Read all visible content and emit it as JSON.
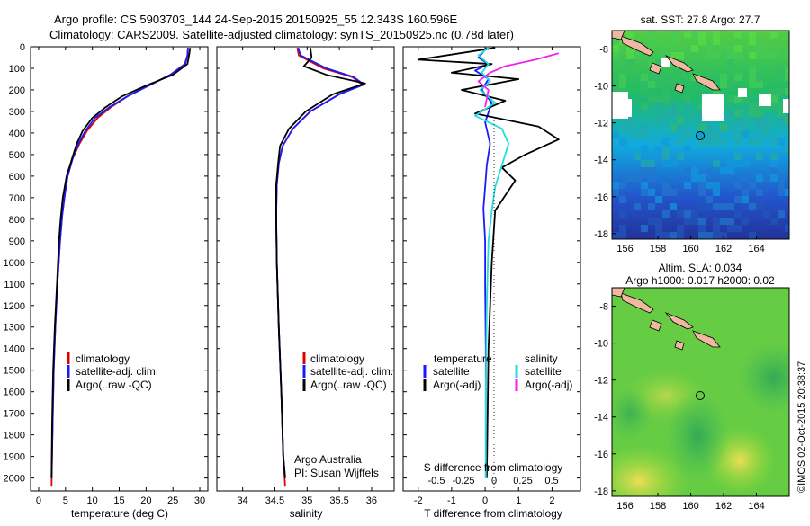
{
  "header": {
    "line1": "Argo profile: CS 5903703_144 24-Sep-2015 20150925_55 12.343S 160.596E",
    "line2": "Climatology: CARS2009. Satellite-adjusted climatology: synTS_20150925.nc (0.78d later)"
  },
  "colors": {
    "climatology": "#dd0000",
    "satellite": "#1a1aff",
    "argo": "#000000",
    "cyan": "#22dddd",
    "magenta": "#ee22ee"
  },
  "chart_data": [
    {
      "type": "line",
      "panel": "temperature",
      "xlabel": "temperature (deg C)",
      "xticks": [
        0,
        5,
        10,
        15,
        20,
        25,
        30
      ],
      "xlim": [
        -1.5,
        31.5
      ],
      "ylim": [
        2060,
        0
      ],
      "yticks": [
        0,
        100,
        200,
        300,
        400,
        500,
        600,
        700,
        800,
        900,
        1000,
        1100,
        1200,
        1300,
        1400,
        1500,
        1600,
        1700,
        1800,
        1900,
        2000
      ],
      "legend": [
        "climatology",
        "satellite-adj. clim.",
        "Argo(..raw -QC)"
      ],
      "series": [
        {
          "name": "climatology",
          "color": "red",
          "x": [
            27.8,
            27.7,
            27.2,
            24.5,
            20.5,
            16.5,
            13.5,
            11.0,
            9.0,
            7.6,
            6.3,
            5.4,
            4.9,
            4.4,
            4.0,
            3.5,
            3.1,
            2.8,
            2.6,
            2.4
          ],
          "y": [
            5,
            40,
            80,
            130,
            180,
            230,
            280,
            330,
            390,
            450,
            520,
            600,
            680,
            780,
            900,
            1100,
            1300,
            1500,
            1750,
            2040
          ]
        },
        {
          "name": "satellite-adj. clim.",
          "color": "blue",
          "x": [
            27.8,
            27.7,
            27.3,
            24.5,
            20.5,
            16.5,
            13.2,
            10.5,
            8.7,
            7.4,
            6.3,
            5.4,
            4.9,
            4.4,
            4.0,
            3.5,
            3.1,
            2.8,
            2.6,
            2.4
          ],
          "y": [
            5,
            40,
            80,
            130,
            180,
            230,
            280,
            330,
            390,
            450,
            520,
            600,
            680,
            780,
            900,
            1100,
            1300,
            1500,
            1750,
            2000
          ]
        },
        {
          "name": "Argo(..raw -QC)",
          "color": "black",
          "x": [
            28.2,
            28.0,
            27.7,
            25.0,
            20.0,
            15.5,
            12.5,
            10.0,
            8.2,
            7.1,
            6.2,
            5.2,
            4.5,
            4.1,
            3.8,
            3.4,
            3.0,
            2.7,
            2.5,
            2.4
          ],
          "y": [
            5,
            40,
            80,
            130,
            180,
            230,
            280,
            330,
            390,
            450,
            520,
            600,
            700,
            800,
            900,
            1100,
            1300,
            1500,
            1750,
            2000
          ]
        }
      ]
    },
    {
      "type": "line",
      "panel": "salinity",
      "xlabel": "salinity",
      "xticks": [
        34,
        34.5,
        35,
        35.5,
        36
      ],
      "xlim": [
        33.6,
        36.35
      ],
      "ylim": [
        2060,
        0
      ],
      "legend": [
        "climatology",
        "satellite-adj. clim.",
        "Argo(..raw -QC)"
      ],
      "annotations": [
        "Argo Australia",
        "PI: Susan Wijffels"
      ],
      "series": [
        {
          "name": "climatology",
          "color": "red",
          "x": [
            34.85,
            34.87,
            35.25,
            35.7,
            35.85,
            35.5,
            35.05,
            34.78,
            34.62,
            34.56,
            34.53,
            34.52,
            34.53,
            34.56,
            34.6,
            34.63,
            34.66
          ],
          "y": [
            5,
            40,
            100,
            140,
            175,
            220,
            300,
            380,
            460,
            540,
            640,
            780,
            1000,
            1300,
            1600,
            1900,
            2040
          ]
        },
        {
          "name": "satellite-adj. clim.",
          "color": "blue",
          "x": [
            34.86,
            34.9,
            35.3,
            35.72,
            35.88,
            35.5,
            35.05,
            34.78,
            34.62,
            34.56,
            34.53,
            34.52,
            34.53,
            34.56,
            34.6,
            34.63,
            34.66
          ],
          "y": [
            5,
            40,
            100,
            140,
            175,
            220,
            300,
            380,
            460,
            540,
            640,
            780,
            1000,
            1300,
            1600,
            1900,
            2000
          ]
        },
        {
          "name": "Argo(..raw -QC)",
          "color": "black",
          "x": [
            35.05,
            35.07,
            34.95,
            35.3,
            35.9,
            35.4,
            34.98,
            34.72,
            34.58,
            34.55,
            34.52,
            34.52,
            34.53,
            34.56,
            34.6,
            34.63,
            34.66
          ],
          "y": [
            5,
            50,
            90,
            130,
            170,
            220,
            300,
            380,
            460,
            540,
            640,
            780,
            1000,
            1300,
            1600,
            1900,
            2000
          ]
        }
      ]
    },
    {
      "type": "line",
      "panel": "difference",
      "xlabel": "T difference from climatology",
      "xticks": [
        -2,
        -1,
        0,
        1,
        2
      ],
      "xlim": [
        -2.45,
        2.85
      ],
      "top_label": "S difference from climatology",
      "top_ticks": [
        "-0.5",
        "-0.25",
        "0",
        "0.25",
        "0.5"
      ],
      "ylim": [
        2060,
        0
      ],
      "legend": [
        "temperature",
        "satellite",
        "Argo(-adj)",
        "salinity",
        "satellite",
        "Argo(-adj)"
      ],
      "series": [
        {
          "name": "satellite",
          "color": "blue",
          "x": [
            0.05,
            -0.2,
            0.1,
            -0.3,
            0.1,
            -0.1,
            0.2,
            0,
            0.15,
            0.05,
            0,
            -0.05,
            0,
            0,
            0.02,
            0.02,
            0.02
          ],
          "y": [
            5,
            50,
            80,
            110,
            150,
            200,
            260,
            350,
            450,
            550,
            650,
            750,
            900,
            1100,
            1400,
            1700,
            2000
          ]
        },
        {
          "name": "Argo(-adj)",
          "color": "black",
          "x": [
            0.3,
            -2.0,
            0.2,
            -1.0,
            1.0,
            -0.7,
            0.6,
            -0.3,
            1.6,
            2.2,
            1.2,
            0.5,
            0.9,
            0.3,
            0.2,
            0.1,
            0.05
          ],
          "y": [
            5,
            60,
            80,
            120,
            150,
            200,
            250,
            310,
            370,
            430,
            500,
            560,
            620,
            760,
            1000,
            1400,
            2000
          ]
        },
        {
          "name": "satellite",
          "color": "cyan",
          "x": [
            0.1,
            -0.2,
            0.1,
            -0.1,
            0.15,
            -0.15,
            0.3,
            -0.3,
            0.5,
            0.7,
            0.5,
            0.3,
            0.2,
            0.1,
            0.05,
            0.02,
            0.02
          ],
          "y": [
            5,
            40,
            80,
            120,
            160,
            200,
            260,
            320,
            380,
            450,
            550,
            650,
            760,
            900,
            1200,
            1600,
            2000
          ]
        },
        {
          "name": "Argo(-adj)",
          "color": "magenta",
          "x": [
            2.2,
            1.5,
            0.6,
            0.15,
            -0.2,
            0.1,
            0.05,
            0
          ],
          "y": [
            30,
            60,
            90,
            120,
            160,
            200,
            240,
            280
          ]
        }
      ]
    },
    {
      "type": "heatmap",
      "panel": "map-sst",
      "title": "sat. SST: 27.8 Argo: 27.7",
      "xticks": [
        156,
        158,
        160,
        162,
        164
      ],
      "yticks": [
        -8,
        -10,
        -12,
        -14,
        -16,
        -18
      ]
    },
    {
      "type": "heatmap",
      "panel": "map-sla",
      "title": "Altim. SLA: 0.034",
      "subtitle": "Argo h1000: 0.017 h2000: 0.02",
      "xticks": [
        156,
        158,
        160,
        162,
        164
      ],
      "yticks": [
        -8,
        -10,
        -12,
        -14,
        -16,
        -18
      ]
    }
  ],
  "side_label": "©IMOS 02-Oct-2015 20:38:37"
}
